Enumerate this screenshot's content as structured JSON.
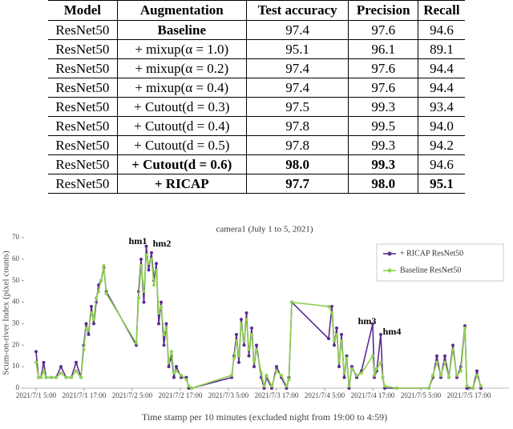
{
  "table": {
    "header": [
      "Model",
      "Augmentation",
      "Test accuracy",
      "Precision",
      "Recall"
    ],
    "rows": [
      [
        "ResNet50",
        "Baseline",
        "97.4",
        "97.6",
        "94.6"
      ],
      [
        "ResNet50",
        "+ mixup(α = 1.0)",
        "95.1",
        "96.1",
        "89.1"
      ],
      [
        "ResNet50",
        "+ mixup(α = 0.2)",
        "97.4",
        "97.6",
        "94.4"
      ],
      [
        "ResNet50",
        "+ mixup(α = 0.4)",
        "97.4",
        "97.6",
        "94.4"
      ],
      [
        "ResNet50",
        "+ Cutout(d = 0.3)",
        "97.5",
        "99.3",
        "93.4"
      ],
      [
        "ResNet50",
        "+ Cutout(d = 0.4)",
        "97.8",
        "99.5",
        "94.0"
      ],
      [
        "ResNet50",
        "+ Cutout(d = 0.5)",
        "97.8",
        "99.3",
        "94.2"
      ],
      [
        "ResNet50",
        "+ Cutout(d = 0.6)",
        "98.0",
        "99.3",
        "94.6"
      ],
      [
        "ResNet50",
        "+ RICAP",
        "97.7",
        "98.0",
        "95.1"
      ]
    ]
  },
  "chart_data": {
    "type": "line",
    "title": "camera1 (July 1 to 5, 2021)",
    "x_label": "Time stamp per 10 minutes (excluded night from 19:00 to 4:59)",
    "y_label": "Scum-on-river Index (pixel counts)",
    "annotations": [
      "hm1",
      "hm2",
      "hm3",
      "hm4"
    ],
    "xlim": [
      -3,
      118
    ],
    "xticks": [
      {
        "value": 0,
        "label": "2021/7/1 5:00"
      },
      {
        "value": 12,
        "label": "2021/7/1 17:00"
      },
      {
        "value": 24,
        "label": "2021/7/2 5:00"
      },
      {
        "value": 36,
        "label": "2021/7/2 17:00"
      },
      {
        "value": 48,
        "label": "2021/7/3 5:00"
      },
      {
        "value": 60,
        "label": "2021/7/3 17:00"
      },
      {
        "value": 72,
        "label": "2021/7/4 5:00"
      },
      {
        "value": 84,
        "label": "2021/7/4 17:00"
      },
      {
        "value": 96,
        "label": "2021/7/5 5:00"
      },
      {
        "value": 108,
        "label": "2021/7/5 17:00"
      }
    ],
    "ylim": [
      0,
      70
    ],
    "yticks": [
      0,
      10,
      20,
      30,
      40,
      50,
      60,
      70
    ],
    "legend": "upper right",
    "x": [
      0,
      0.6,
      1.2,
      1.9,
      2.5,
      3.8,
      5,
      6.2,
      7.5,
      8.8,
      10,
      11.2,
      11.9,
      12.5,
      13.1,
      13.8,
      14.4,
      15,
      15.6,
      16.2,
      16.9,
      17.5,
      25,
      25.6,
      26.2,
      26.9,
      27.5,
      28.1,
      28.8,
      29.4,
      30,
      30.6,
      31.2,
      31.9,
      32.5,
      33.1,
      33.8,
      34.4,
      35,
      36.2,
      37.5,
      38.1,
      38.8,
      48.8,
      49.4,
      50,
      50.6,
      51.2,
      51.9,
      52.5,
      53.1,
      53.8,
      54.4,
      55,
      56.2,
      56.9,
      57.5,
      58.8,
      60,
      61.2,
      62.5,
      63.1,
      63.8,
      73,
      73.8,
      74.4,
      75,
      75.6,
      76.2,
      76.9,
      77.5,
      78.1,
      78.8,
      80,
      81.2,
      84,
      84.4,
      85,
      86,
      86.5,
      87,
      90,
      98,
      99,
      100,
      101,
      102,
      103,
      104,
      105,
      106,
      107,
      107.5,
      109,
      110,
      111
    ],
    "series": [
      {
        "name": "+ RICAP ResNet50",
        "color": "#5b2c8e",
        "values": [
          17,
          5,
          5,
          12,
          5,
          5,
          5,
          10,
          5,
          5,
          12,
          5,
          20,
          30,
          25,
          38,
          30,
          40,
          48,
          50,
          56,
          45,
          20,
          45,
          60,
          40,
          66,
          55,
          63,
          50,
          58,
          30,
          40,
          20,
          30,
          10,
          15,
          5,
          10,
          5,
          5,
          0,
          0,
          5,
          15,
          25,
          12,
          32,
          20,
          35,
          15,
          28,
          10,
          20,
          5,
          0,
          5,
          0,
          10,
          5,
          0,
          5,
          40,
          23,
          38,
          20,
          28,
          10,
          25,
          5,
          15,
          0,
          10,
          5,
          8,
          30,
          5,
          8,
          25,
          5,
          0,
          0,
          0,
          5,
          15,
          5,
          15,
          5,
          20,
          5,
          10,
          29,
          0,
          0,
          8,
          0
        ]
      },
      {
        "name": "Baseline ResNet50",
        "color": "#8fd14f",
        "values": [
          12,
          5,
          5,
          8,
          5,
          5,
          5,
          7,
          5,
          5,
          8,
          5,
          18,
          28,
          27,
          35,
          32,
          42,
          45,
          50,
          57,
          44,
          21,
          42,
          57,
          45,
          62,
          58,
          60,
          48,
          55,
          35,
          38,
          25,
          28,
          12,
          17,
          7,
          8,
          6,
          4,
          1,
          0,
          6,
          14,
          22,
          15,
          30,
          22,
          32,
          18,
          25,
          12,
          18,
          7,
          1,
          6,
          1,
          8,
          6,
          1,
          4,
          40,
          38,
          35,
          22,
          25,
          12,
          22,
          7,
          14,
          1,
          9,
          6,
          7,
          15,
          6,
          9,
          12,
          5,
          1,
          0,
          0,
          6,
          12,
          6,
          12,
          5,
          18,
          6,
          8,
          28,
          1,
          0,
          6,
          1
        ]
      }
    ]
  }
}
